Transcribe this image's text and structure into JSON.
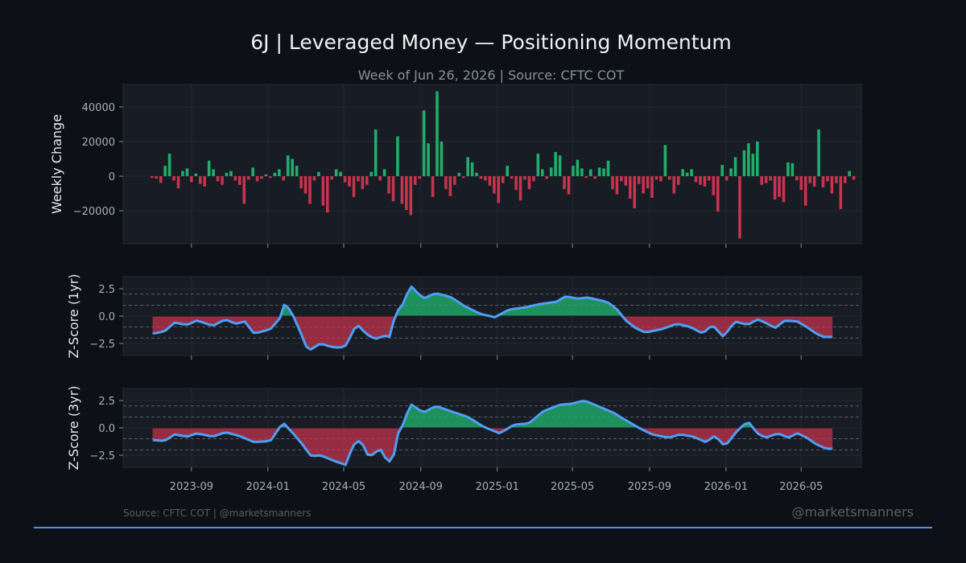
{
  "title": "6J | Leveraged Money — Positioning Momentum",
  "subtitle": "Week of Jun 26, 2026 | Source: CFTC COT",
  "footer_left": "Source: CFTC COT | @marketsmanners",
  "footer_right": "@marketsmanners",
  "colors": {
    "bg": "#0d1117",
    "panel": "#181c24",
    "pos": "#1fae6c",
    "neg": "#c8334e",
    "line": "#4f9ff5"
  },
  "chart_data": [
    {
      "type": "bar",
      "ylabel": "Weekly Change",
      "ylim": [
        -39000,
        53000
      ],
      "yticks": [
        40000,
        20000,
        0,
        -20000
      ],
      "xlim": [
        "2023-05-15",
        "2026-08-05"
      ],
      "start": "2023-06-30",
      "interval_days": 7,
      "values": [
        -1000,
        -1500,
        -4000,
        6000,
        13000,
        -2500,
        -7000,
        3000,
        4500,
        -3500,
        1500,
        -4500,
        -6000,
        9000,
        4000,
        -3000,
        -5000,
        2000,
        3000,
        -2500,
        -5000,
        -16000,
        -2000,
        5000,
        -3000,
        -1500,
        1000,
        -1000,
        2000,
        4000,
        -2500,
        12000,
        10000,
        6000,
        -7000,
        -10000,
        -16000,
        -2500,
        2500,
        -17000,
        -21000,
        -2000,
        4000,
        2500,
        -3500,
        -6000,
        -12000,
        -3000,
        -7500,
        -5000,
        2500,
        27000,
        -2500,
        4000,
        -10000,
        -14500,
        23000,
        -16000,
        -19500,
        -22500,
        -5000,
        -1500,
        38000,
        19000,
        -12000,
        49000,
        20000,
        -7500,
        -11500,
        -5000,
        2000,
        -1000,
        11000,
        8000,
        2000,
        -1500,
        -2500,
        -5500,
        -10000,
        -15500,
        -4000,
        6000,
        -1500,
        -8000,
        -14000,
        -2000,
        -7500,
        -3000,
        13000,
        4000,
        -1500,
        5000,
        14000,
        12000,
        -7500,
        -10500,
        6000,
        9500,
        4500,
        -1000,
        4000,
        -1500,
        5000,
        4500,
        9000,
        -7500,
        -10500,
        -3000,
        -5500,
        -13000,
        -18500,
        -4500,
        -10000,
        -7000,
        -12500,
        -2000,
        -3000,
        18000,
        -2000,
        -10000,
        -5000,
        4000,
        2000,
        4000,
        -3500,
        -5000,
        -6000,
        -2500,
        -11000,
        -20500,
        6500,
        -2500,
        4500,
        11000,
        -36000,
        15000,
        19000,
        13000,
        20000,
        -5000,
        -4000,
        -2500,
        -13500,
        -12000,
        -15000,
        8000,
        7500,
        -2500,
        -8000,
        -17000,
        -4000,
        -6000,
        27000,
        -6500,
        -3000,
        -10000,
        -4000,
        -19000,
        -4000,
        3000,
        -2000
      ]
    },
    {
      "type": "area",
      "ylabel": "Z-Score (1yr)",
      "ylim": [
        -3.6,
        3.6
      ],
      "yticks": [
        2.5,
        0.0,
        -2.5
      ],
      "ref_lines": [
        2,
        1,
        -1,
        -2
      ],
      "keypoints": [
        [
          "2023-07-01",
          -1.6
        ],
        [
          "2023-07-20",
          -1.4
        ],
        [
          "2023-08-05",
          -0.6
        ],
        [
          "2023-08-25",
          -0.8
        ],
        [
          "2023-09-10",
          -0.4
        ],
        [
          "2023-10-05",
          -0.9
        ],
        [
          "2023-10-25",
          -0.3
        ],
        [
          "2023-11-10",
          -0.7
        ],
        [
          "2023-11-25",
          -0.5
        ],
        [
          "2023-12-10",
          -1.6
        ],
        [
          "2024-01-05",
          -1.2
        ],
        [
          "2024-01-20",
          -0.2
        ],
        [
          "2024-01-28",
          1.2
        ],
        [
          "2024-02-08",
          0.3
        ],
        [
          "2024-02-20",
          -1.2
        ],
        [
          "2024-03-05",
          -3.2
        ],
        [
          "2024-03-25",
          -2.5
        ],
        [
          "2024-04-10",
          -2.8
        ],
        [
          "2024-04-25",
          -2.9
        ],
        [
          "2024-05-08",
          -2.6
        ],
        [
          "2024-05-14",
          -1.3
        ],
        [
          "2024-05-25",
          -0.9
        ],
        [
          "2024-06-05",
          -1.6
        ],
        [
          "2024-06-20",
          -2.1
        ],
        [
          "2024-07-05",
          -1.8
        ],
        [
          "2024-07-15",
          -1.9
        ],
        [
          "2024-07-22",
          0.2
        ],
        [
          "2024-08-05",
          1.2
        ],
        [
          "2024-08-15",
          2.8
        ],
        [
          "2024-09-05",
          1.6
        ],
        [
          "2024-09-25",
          2.1
        ],
        [
          "2024-10-20",
          1.7
        ],
        [
          "2024-11-10",
          0.9
        ],
        [
          "2024-12-05",
          0.2
        ],
        [
          "2024-12-28",
          -0.1
        ],
        [
          "2025-01-20",
          0.6
        ],
        [
          "2025-02-15",
          0.8
        ],
        [
          "2025-03-10",
          1.1
        ],
        [
          "2025-04-05",
          1.3
        ],
        [
          "2025-04-20",
          1.8
        ],
        [
          "2025-05-10",
          1.6
        ],
        [
          "2025-05-25",
          1.7
        ],
        [
          "2025-06-10",
          1.5
        ],
        [
          "2025-06-25",
          1.3
        ],
        [
          "2025-07-10",
          0.7
        ],
        [
          "2025-07-25",
          -0.4
        ],
        [
          "2025-08-10",
          -1.1
        ],
        [
          "2025-08-25",
          -1.5
        ],
        [
          "2025-09-20",
          -1.2
        ],
        [
          "2025-10-15",
          -0.7
        ],
        [
          "2025-11-05",
          -1.0
        ],
        [
          "2025-11-25",
          -1.6
        ],
        [
          "2025-12-10",
          -0.8
        ],
        [
          "2025-12-28",
          -1.9
        ],
        [
          "2026-01-15",
          -0.5
        ],
        [
          "2026-02-05",
          -0.8
        ],
        [
          "2026-02-20",
          -0.3
        ],
        [
          "2026-03-05",
          -0.6
        ],
        [
          "2026-03-20",
          -1.1
        ],
        [
          "2026-04-05",
          -0.4
        ],
        [
          "2026-04-25",
          -0.5
        ],
        [
          "2026-05-10",
          -1.0
        ],
        [
          "2026-05-25",
          -1.6
        ],
        [
          "2026-06-05",
          -1.9
        ],
        [
          "2026-06-26",
          -1.9
        ]
      ]
    },
    {
      "type": "area",
      "ylabel": "Z-Score (3yr)",
      "ylim": [
        -3.6,
        3.6
      ],
      "yticks": [
        2.5,
        0.0,
        -2.5
      ],
      "ref_lines": [
        2,
        1,
        -1,
        -2
      ],
      "keypoints": [
        [
          "2023-07-01",
          -1.1
        ],
        [
          "2023-07-20",
          -1.2
        ],
        [
          "2023-08-05",
          -0.6
        ],
        [
          "2023-08-25",
          -0.8
        ],
        [
          "2023-09-10",
          -0.5
        ],
        [
          "2023-10-05",
          -0.8
        ],
        [
          "2023-10-25",
          -0.4
        ],
        [
          "2023-11-15",
          -0.7
        ],
        [
          "2023-12-10",
          -1.3
        ],
        [
          "2024-01-05",
          -1.2
        ],
        [
          "2024-01-25",
          0.5
        ],
        [
          "2024-02-10",
          -0.5
        ],
        [
          "2024-02-25",
          -1.5
        ],
        [
          "2024-03-10",
          -2.6
        ],
        [
          "2024-03-25",
          -2.5
        ],
        [
          "2024-04-15",
          -3.0
        ],
        [
          "2024-05-05",
          -3.4
        ],
        [
          "2024-05-15",
          -1.6
        ],
        [
          "2024-05-28",
          -1.1
        ],
        [
          "2024-06-10",
          -2.7
        ],
        [
          "2024-06-28",
          -1.9
        ],
        [
          "2024-07-10",
          -3.1
        ],
        [
          "2024-07-18",
          -3.0
        ],
        [
          "2024-07-28",
          -0.2
        ],
        [
          "2024-08-05",
          0.4
        ],
        [
          "2024-08-15",
          2.2
        ],
        [
          "2024-09-05",
          1.4
        ],
        [
          "2024-09-25",
          2.0
        ],
        [
          "2024-10-20",
          1.5
        ],
        [
          "2024-11-15",
          1.0
        ],
        [
          "2024-12-10",
          0.1
        ],
        [
          "2025-01-05",
          -0.5
        ],
        [
          "2025-01-28",
          0.3
        ],
        [
          "2025-02-20",
          0.4
        ],
        [
          "2025-03-15",
          1.5
        ],
        [
          "2025-04-10",
          2.1
        ],
        [
          "2025-04-30",
          2.2
        ],
        [
          "2025-05-20",
          2.5
        ],
        [
          "2025-06-10",
          2.0
        ],
        [
          "2025-07-05",
          1.4
        ],
        [
          "2025-07-25",
          0.7
        ],
        [
          "2025-08-15",
          0.0
        ],
        [
          "2025-09-05",
          -0.6
        ],
        [
          "2025-10-01",
          -0.9
        ],
        [
          "2025-10-20",
          -0.6
        ],
        [
          "2025-11-10",
          -0.8
        ],
        [
          "2025-11-30",
          -1.3
        ],
        [
          "2025-12-15",
          -0.7
        ],
        [
          "2025-12-30",
          -1.7
        ],
        [
          "2026-01-20",
          -0.2
        ],
        [
          "2026-02-05",
          0.6
        ],
        [
          "2026-02-20",
          -0.5
        ],
        [
          "2026-03-05",
          -0.9
        ],
        [
          "2026-03-25",
          -0.5
        ],
        [
          "2026-04-10",
          -0.9
        ],
        [
          "2026-04-25",
          -0.5
        ],
        [
          "2026-05-10",
          -0.9
        ],
        [
          "2026-05-25",
          -1.5
        ],
        [
          "2026-06-10",
          -1.9
        ],
        [
          "2026-06-26",
          -1.9
        ]
      ]
    }
  ],
  "x_ticks": [
    "2023-09",
    "2024-01",
    "2024-05",
    "2024-09",
    "2025-01",
    "2025-05",
    "2025-09",
    "2026-01",
    "2026-05"
  ]
}
